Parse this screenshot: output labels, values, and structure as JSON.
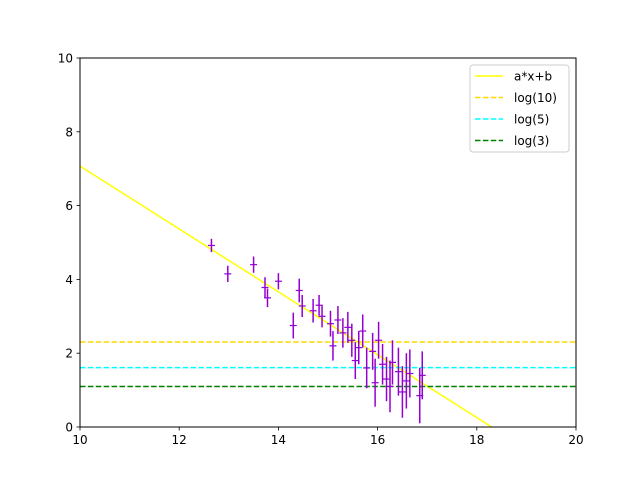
{
  "chart_data": {
    "type": "scatter",
    "title": "",
    "xlabel": "",
    "ylabel": "",
    "xlim": [
      10,
      20
    ],
    "ylim": [
      0,
      10
    ],
    "grid": false,
    "legend_position": "top-right",
    "xticks": [
      "10",
      "12",
      "14",
      "16",
      "18",
      "20"
    ],
    "yticks": [
      "0",
      "2",
      "4",
      "6",
      "8",
      "10"
    ],
    "fit_line": {
      "name": "a*x+b",
      "color": "#ffff00",
      "points": [
        [
          10,
          7.07
        ],
        [
          18.3,
          0
        ]
      ]
    },
    "hlines": [
      {
        "name": "log(10)",
        "y": 2.303,
        "color": "#ffd700",
        "style": "dashed"
      },
      {
        "name": "log(5)",
        "y": 1.609,
        "color": "#00ffff",
        "style": "dashed"
      },
      {
        "name": "log(3)",
        "y": 1.099,
        "color": "#008000",
        "style": "dashed"
      }
    ],
    "points_color": "#9400d3",
    "points": [
      {
        "x": 12.65,
        "y": 4.92,
        "err": 0.18
      },
      {
        "x": 12.98,
        "y": 4.15,
        "err": 0.22
      },
      {
        "x": 13.5,
        "y": 4.4,
        "err": 0.22
      },
      {
        "x": 13.73,
        "y": 3.78,
        "err": 0.28
      },
      {
        "x": 13.78,
        "y": 3.5,
        "err": 0.25
      },
      {
        "x": 14.0,
        "y": 3.95,
        "err": 0.22
      },
      {
        "x": 14.3,
        "y": 2.75,
        "err": 0.35
      },
      {
        "x": 14.42,
        "y": 3.7,
        "err": 0.32
      },
      {
        "x": 14.48,
        "y": 3.28,
        "err": 0.3
      },
      {
        "x": 14.7,
        "y": 3.15,
        "err": 0.32
      },
      {
        "x": 14.82,
        "y": 3.3,
        "err": 0.28
      },
      {
        "x": 14.88,
        "y": 3.0,
        "err": 0.3
      },
      {
        "x": 15.05,
        "y": 2.8,
        "err": 0.35
      },
      {
        "x": 15.1,
        "y": 2.2,
        "err": 0.4
      },
      {
        "x": 15.2,
        "y": 2.9,
        "err": 0.38
      },
      {
        "x": 15.3,
        "y": 2.55,
        "err": 0.4
      },
      {
        "x": 15.4,
        "y": 2.7,
        "err": 0.42
      },
      {
        "x": 15.48,
        "y": 2.35,
        "err": 0.45
      },
      {
        "x": 15.55,
        "y": 1.8,
        "err": 0.5
      },
      {
        "x": 15.62,
        "y": 2.15,
        "err": 0.45
      },
      {
        "x": 15.7,
        "y": 2.6,
        "err": 0.45
      },
      {
        "x": 15.78,
        "y": 1.6,
        "err": 0.55
      },
      {
        "x": 15.9,
        "y": 2.05,
        "err": 0.5
      },
      {
        "x": 15.95,
        "y": 1.2,
        "err": 0.65
      },
      {
        "x": 16.02,
        "y": 2.35,
        "err": 0.5
      },
      {
        "x": 16.1,
        "y": 1.7,
        "err": 0.55
      },
      {
        "x": 16.18,
        "y": 1.3,
        "err": 0.6
      },
      {
        "x": 16.25,
        "y": 1.1,
        "err": 0.7
      },
      {
        "x": 16.3,
        "y": 1.75,
        "err": 0.6
      },
      {
        "x": 16.42,
        "y": 1.5,
        "err": 0.65
      },
      {
        "x": 16.5,
        "y": 0.95,
        "err": 0.7
      },
      {
        "x": 16.58,
        "y": 1.25,
        "err": 0.75
      },
      {
        "x": 16.65,
        "y": 1.45,
        "err": 0.65
      },
      {
        "x": 16.85,
        "y": 0.85,
        "err": 0.75
      },
      {
        "x": 16.9,
        "y": 1.4,
        "err": 0.65
      }
    ]
  }
}
